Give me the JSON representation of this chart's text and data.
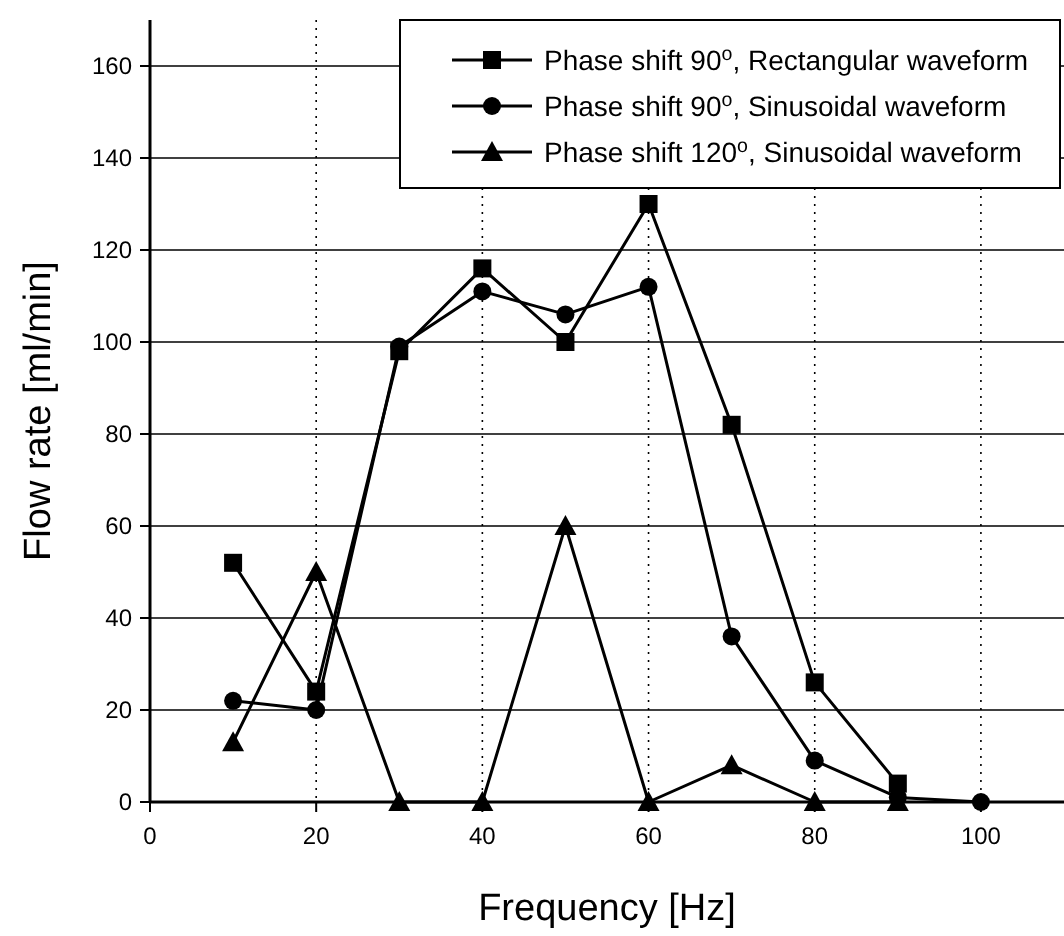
{
  "chart_data": {
    "type": "line",
    "xlabel": "Frequency [Hz]",
    "ylabel": "Flow rate [ml/min]",
    "x": [
      10,
      20,
      30,
      40,
      50,
      60,
      70,
      80,
      90,
      100
    ],
    "series": [
      {
        "name": "Phase shift 90$^{o}$, Rectangular waveform",
        "color": "#000000",
        "marker": "square",
        "values": [
          52,
          24,
          98,
          116,
          100,
          130,
          82,
          26,
          4,
          null
        ]
      },
      {
        "name": "Phase shift 90$^{o}$, Sinusoidal waveform",
        "color": "#000000",
        "marker": "circle",
        "values": [
          22,
          20,
          99,
          111,
          106,
          112,
          36,
          9,
          1,
          0
        ]
      },
      {
        "name": "Phase shift 120$^{o}$, Sinusoidal waveform",
        "color": "#000000",
        "marker": "triangle",
        "values": [
          13,
          50,
          0,
          0,
          60,
          0,
          8,
          0,
          0,
          null
        ]
      }
    ],
    "xlim": [
      0,
      110
    ],
    "xticks": [
      0,
      20,
      40,
      60,
      80,
      100
    ],
    "ylim": [
      0,
      170
    ],
    "yticks": [
      0,
      20,
      40,
      60,
      80,
      100,
      120,
      140,
      160
    ],
    "grid": true,
    "legend": "top right",
    "line_style": "solid"
  }
}
